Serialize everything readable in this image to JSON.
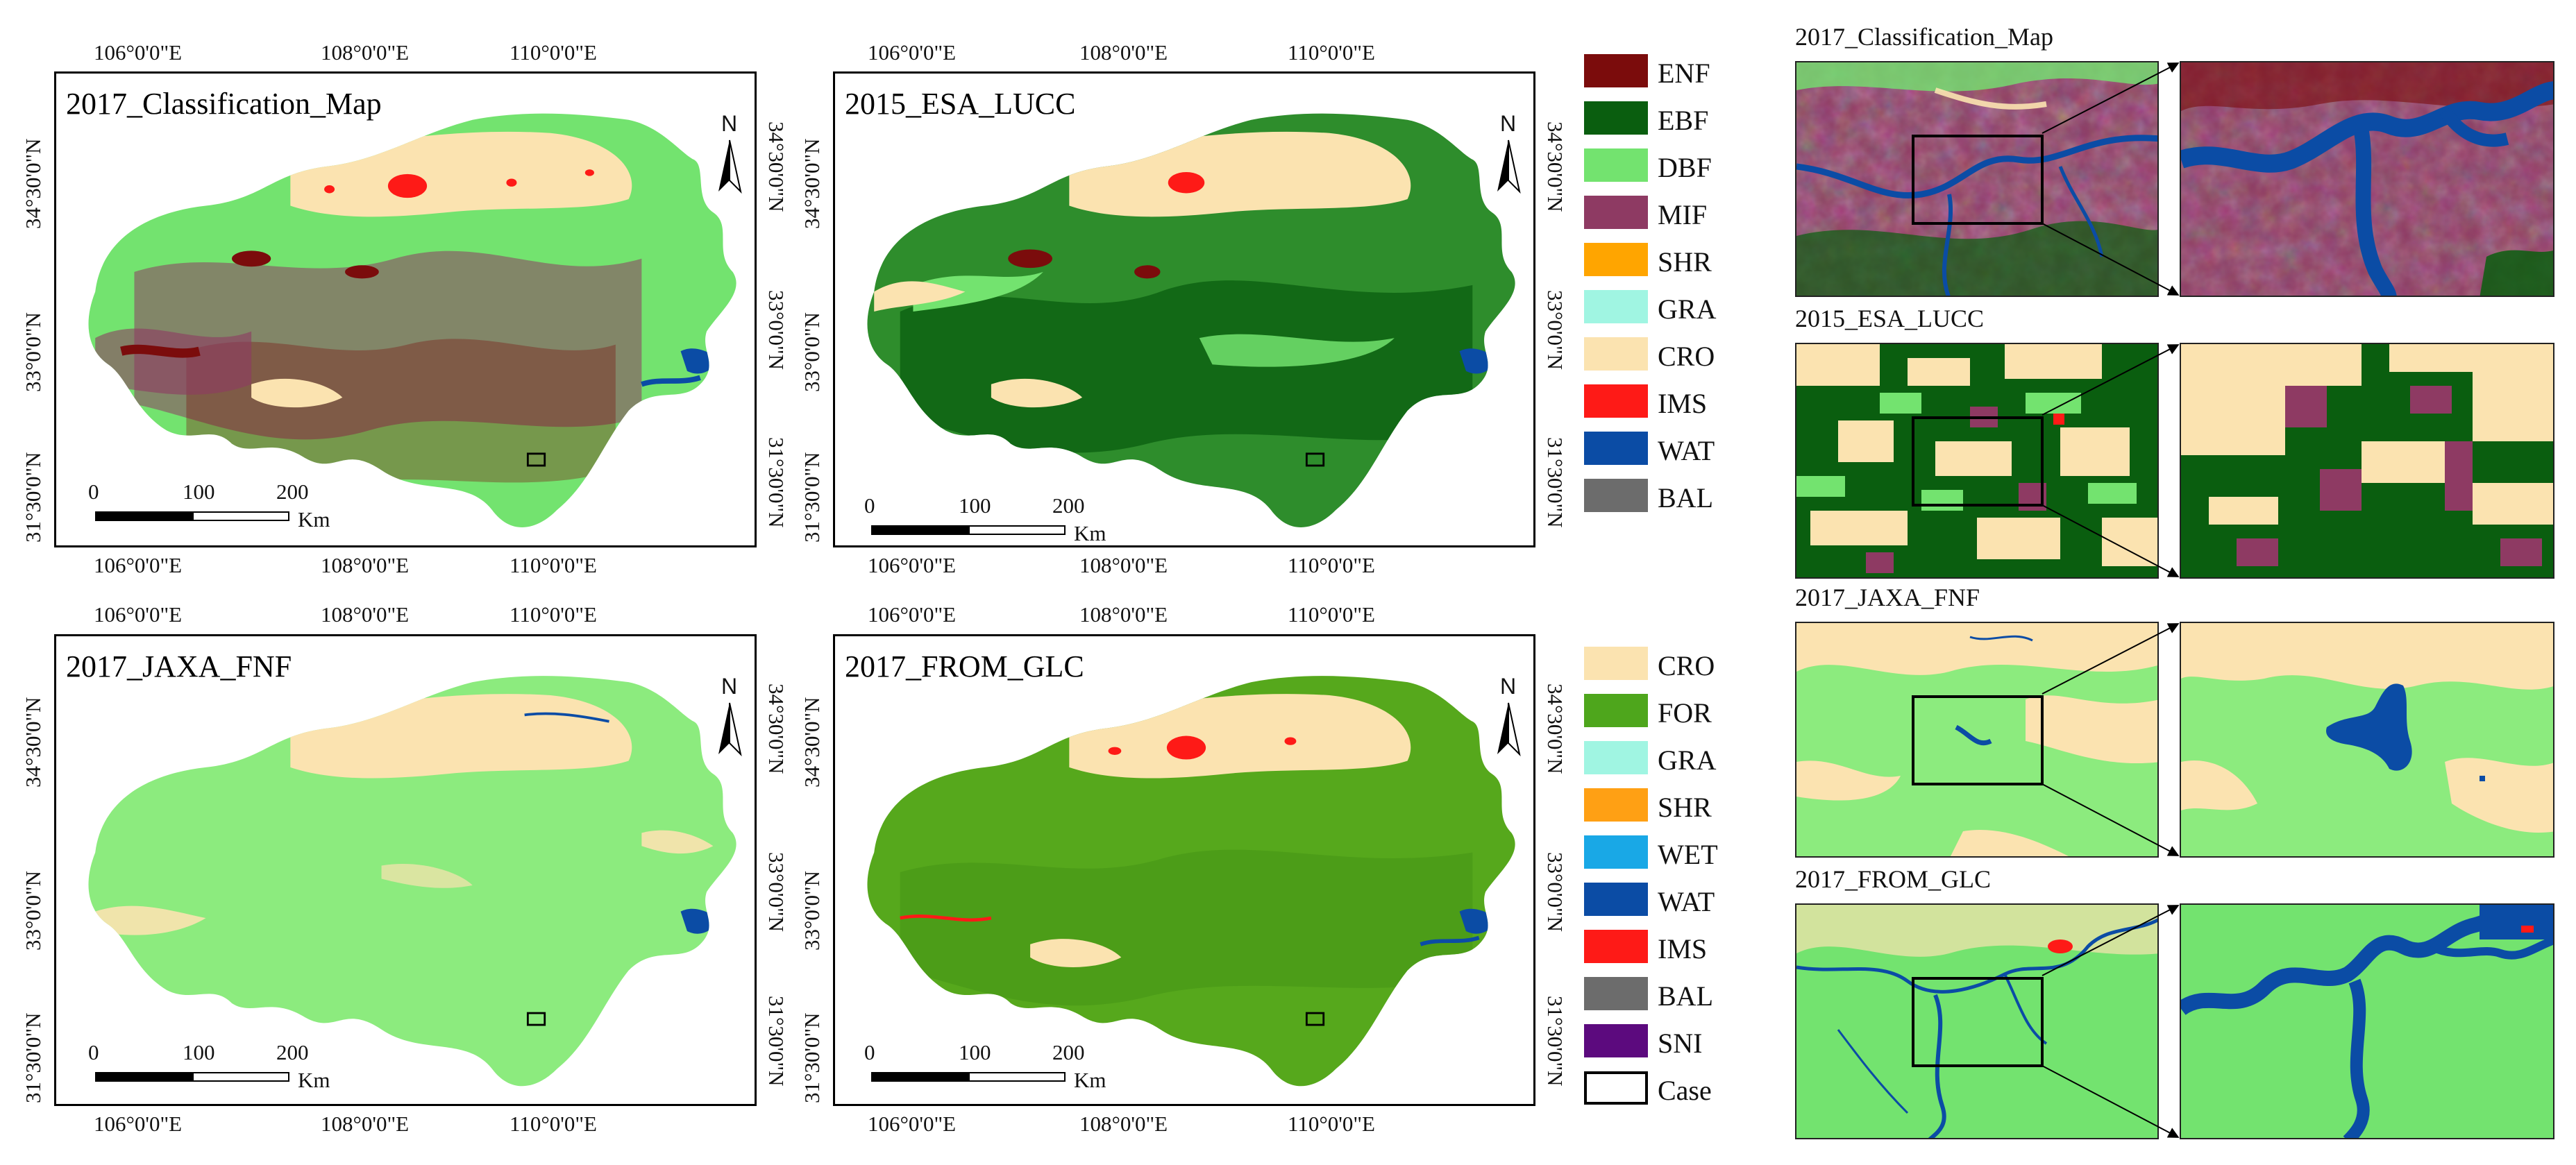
{
  "maps": {
    "classification": {
      "title": "2017_Classification_Map"
    },
    "esa": {
      "title": "2015_ESA_LUCC"
    },
    "jaxa": {
      "title": "2017_JAXA_FNF"
    },
    "fromglc": {
      "title": "2017_FROM_GLC"
    }
  },
  "ticks": {
    "lon": [
      "106°0'0\"E",
      "108°0'0\"E",
      "110°0'0\"E"
    ],
    "lat": [
      "34°30'0\"N",
      "33°0'0\"N",
      "31°30'0\"N"
    ]
  },
  "north_label": "N",
  "scale": {
    "zero": "0",
    "mid": "100",
    "max": "200",
    "unit": "Km"
  },
  "legend_top": [
    {
      "label": "ENF",
      "color": "#7b0c0c"
    },
    {
      "label": "EBF",
      "color": "#0a5e0f"
    },
    {
      "label": "DBF",
      "color": "#73e36f"
    },
    {
      "label": "MIF",
      "color": "#8e3a63"
    },
    {
      "label": "SHR",
      "color": "#ffa500"
    },
    {
      "label": "GRA",
      "color": "#a0f5e2"
    },
    {
      "label": "CRO",
      "color": "#fbe3b0"
    },
    {
      "label": "IMS",
      "color": "#fe1a17"
    },
    {
      "label": "WAT",
      "color": "#0b4ca5"
    },
    {
      "label": "BAL",
      "color": "#6c6c6c"
    }
  ],
  "legend_bottom": [
    {
      "label": "CRO",
      "color": "#fbe3b0"
    },
    {
      "label": "FOR",
      "color": "#4ea61c"
    },
    {
      "label": "GRA",
      "color": "#a0f5e2"
    },
    {
      "label": "SHR",
      "color": "#ffa014"
    },
    {
      "label": "WET",
      "color": "#19a8e6"
    },
    {
      "label": "WAT",
      "color": "#0b4ca5"
    },
    {
      "label": "IMS",
      "color": "#fe1a17"
    },
    {
      "label": "BAL",
      "color": "#6c6c6c"
    },
    {
      "label": "SNI",
      "color": "#5c0a7e"
    },
    {
      "label": "Case",
      "color": "#ffffff"
    }
  ],
  "cases": [
    {
      "title": "2017_Classification_Map"
    },
    {
      "title": "2015_ESA_LUCC"
    },
    {
      "title": "2017_JAXA_FNF"
    },
    {
      "title": "2017_FROM_GLC"
    }
  ]
}
